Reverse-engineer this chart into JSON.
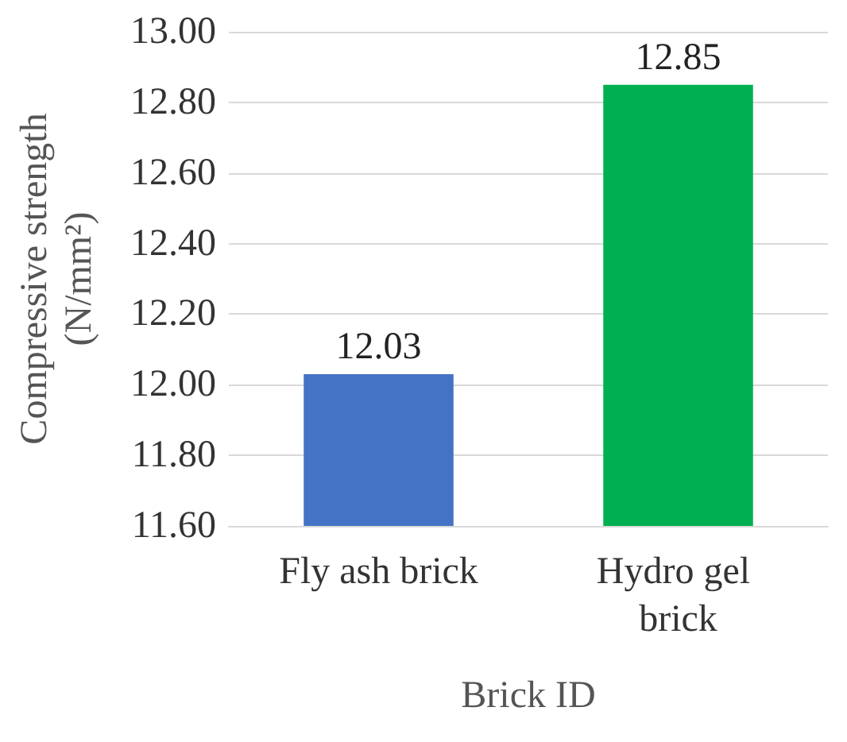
{
  "chart_data": {
    "type": "bar",
    "xlabel": "Brick ID",
    "ylabel": "Compressive strength (N/mm²)",
    "categories": [
      "Fly ash brick",
      "Hydro gel brick"
    ],
    "values": [
      12.03,
      12.85
    ],
    "colors": [
      "#4472c4",
      "#00b050"
    ],
    "ylim": [
      11.6,
      13.0
    ],
    "yticks": [
      {
        "value": 11.6,
        "label": "11.60"
      },
      {
        "value": 11.8,
        "label": "11.80"
      },
      {
        "value": 12.0,
        "label": "12.00"
      },
      {
        "value": 12.2,
        "label": "12.20"
      },
      {
        "value": 12.4,
        "label": "12.40"
      },
      {
        "value": 12.6,
        "label": "12.60"
      },
      {
        "value": 12.8,
        "label": "12.80"
      },
      {
        "value": 13.0,
        "label": "13.00"
      }
    ],
    "grid": "y",
    "data_labels": true
  }
}
